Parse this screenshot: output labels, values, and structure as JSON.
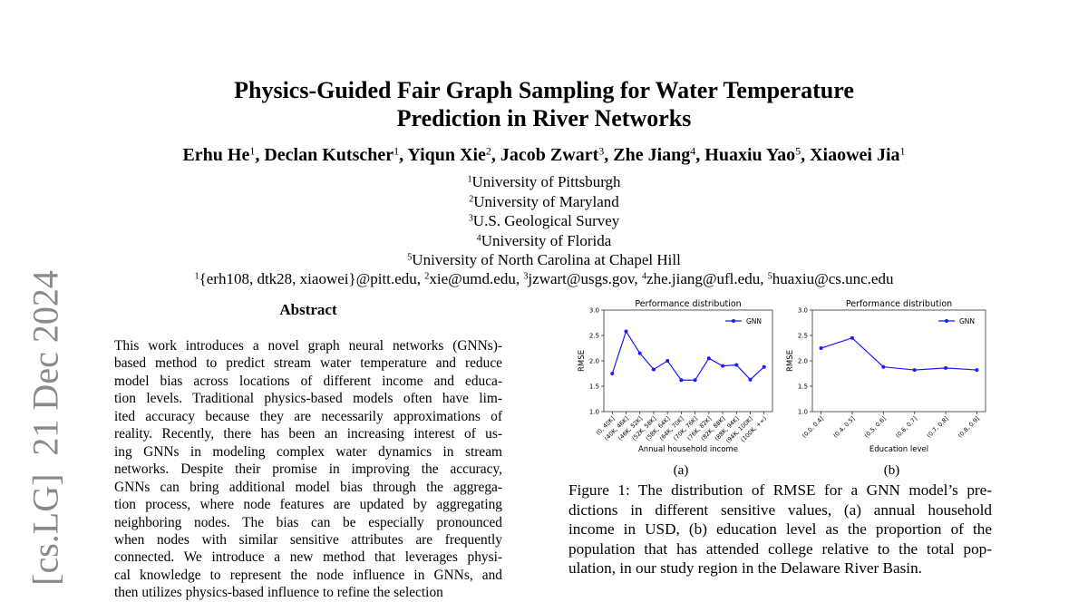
{
  "header": {
    "title_lines": [
      "Physics-Guided Fair Graph Sampling for Water Temperature",
      "Prediction in River Networks"
    ],
    "authors": [
      {
        "name": "Erhu He",
        "sup": "1",
        "punct": ","
      },
      {
        "name": "Declan Kutscher",
        "sup": "1",
        "punct": ","
      },
      {
        "name": "Yiqun Xie",
        "sup": "2",
        "punct": ","
      },
      {
        "name": "Jacob Zwart",
        "sup": "3",
        "punct": ","
      },
      {
        "name": "Zhe Jiang",
        "sup": "4",
        "punct": ","
      },
      {
        "name": "Huaxiu Yao",
        "sup": "5",
        "punct": ","
      },
      {
        "name": "Xiaowei Jia",
        "sup": "1"
      }
    ],
    "affiliations": [
      {
        "sup": "1",
        "text": "University of Pittsburgh"
      },
      {
        "sup": "2",
        "text": "University of Maryland"
      },
      {
        "sup": "3",
        "text": "U.S. Geological Survey"
      },
      {
        "sup": "4",
        "text": "University of Florida"
      },
      {
        "sup": "5",
        "text": "University of North Carolina at Chapel Hill"
      }
    ],
    "emails": [
      {
        "sup": "1",
        "text": "{erh108, dtk28, xiaowei}@pitt.edu,"
      },
      {
        "sup": "2",
        "text": "xie@umd.edu,"
      },
      {
        "sup": "3",
        "text": "jzwart@usgs.gov,"
      },
      {
        "sup": "4",
        "text": "zhe.jiang@ufl.edu,"
      },
      {
        "sup": "5",
        "text": "huaxiu@cs.unc.edu"
      }
    ]
  },
  "side_stamp": "[cs.LG]  21 Dec 2024",
  "abstract": {
    "heading": "Abstract",
    "lines": [
      "This work introduces a novel graph neural networks (GNNs)-",
      "based method to predict stream water temperature and reduce",
      "model bias across locations of different income and educa-",
      "tion levels. Traditional physics-based models often have lim-",
      "ited accuracy because they are necessarily approximations of",
      "reality. Recently, there has been an increasing interest of us-",
      "ing GNNs in modeling complex water dynamics in stream",
      "networks. Despite their promise in improving the accuracy,",
      "GNNs can bring additional model bias through the aggrega-",
      "tion process, where node features are updated by aggregating",
      "neighboring nodes. The bias can be especially pronounced",
      "when nodes with similar sensitive attributes are frequently",
      "connected. We introduce a new method that leverages physi-",
      "cal knowledge to represent the node influence in GNNs, and",
      "then utilizes physics-based influence to refine the selection"
    ]
  },
  "figure": {
    "charts": [
      {
        "type": "line",
        "title": "Performance distribution",
        "xlabel": "Annual household income",
        "ylabel": "RMSE",
        "sublabel": "(a)",
        "categories": [
          "(0, 40K]",
          "(40K, 46K]",
          "(46K, 52K]",
          "(52K, 58K]",
          "(58K, 64K]",
          "(64K, 70K]",
          "(70K, 76K]",
          "(76K, 82K]",
          "(82K, 88K]",
          "(88K, 94K]",
          "(94K, 100K]",
          "(100K, +∞)"
        ],
        "series": [
          {
            "name": "GNN",
            "color": "#1a1aff",
            "values": [
              1.75,
              2.58,
              2.15,
              1.83,
              2.0,
              1.62,
              1.62,
              2.05,
              1.9,
              1.92,
              1.63,
              1.88
            ]
          }
        ],
        "ylim": [
          1,
          3
        ],
        "yticks": [
          {
            "value": 1,
            "label": "1.0"
          },
          {
            "value": 1.5,
            "label": "1.5"
          },
          {
            "value": 2,
            "label": "2.0"
          },
          {
            "value": 2.5,
            "label": "2.5"
          },
          {
            "value": 3,
            "label": "3.0"
          }
        ],
        "legend": "upper right"
      },
      {
        "type": "line",
        "title": "Performance distribution",
        "xlabel": "Education level",
        "ylabel": "RMSE",
        "sublabel": "(b)",
        "categories": [
          "(0.0, 0.4]",
          "(0.4, 0.5]",
          "(0.5, 0.6]",
          "(0.6, 0.7]",
          "(0.7, 0.8]",
          "(0.8, 0.9]"
        ],
        "series": [
          {
            "name": "GNN",
            "color": "#1a1aff",
            "values": [
              2.25,
              2.45,
              1.88,
              1.82,
              1.86,
              1.82
            ]
          }
        ],
        "ylim": [
          1,
          3
        ],
        "yticks": [
          {
            "value": 1,
            "label": "1.0"
          },
          {
            "value": 1.5,
            "label": "1.5"
          },
          {
            "value": 2,
            "label": "2.0"
          },
          {
            "value": 2.5,
            "label": "2.5"
          },
          {
            "value": 3,
            "label": "3.0"
          }
        ],
        "legend": "upper right"
      }
    ],
    "caption_lines": [
      "Figure 1: The distribution of RMSE for a GNN model’s pre-",
      "dictions in different sensitive values, (a) annual household",
      "income in USD, (b) education level as the proportion of the",
      "population that has attended college relative to the total pop-",
      "ulation, in our study region in the Delaware River Basin."
    ]
  }
}
